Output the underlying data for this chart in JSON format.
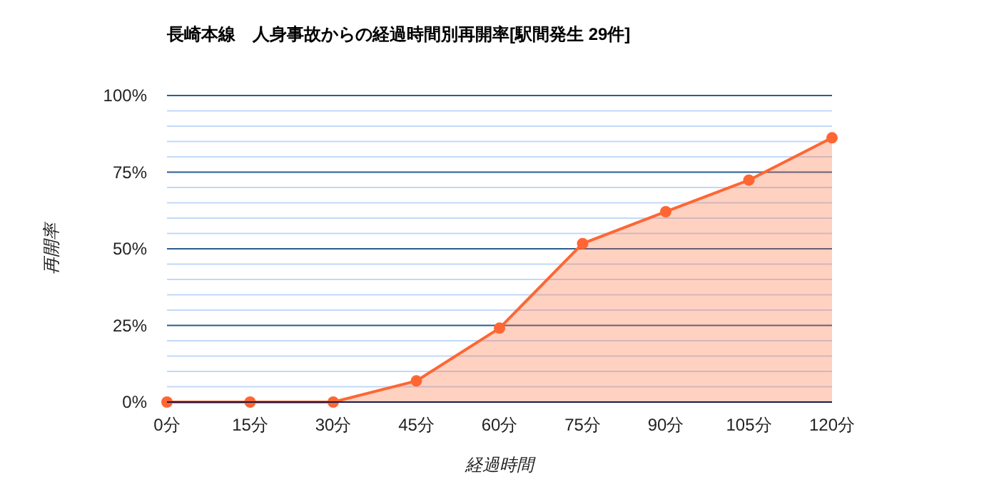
{
  "chart_data": {
    "type": "area",
    "title": "長崎本線　人身事故からの経過時間別再開率[駅間発生 29件]",
    "xlabel": "経過時間",
    "ylabel": "再開率",
    "categories": [
      "0分",
      "15分",
      "30分",
      "45分",
      "60分",
      "75分",
      "90分",
      "105分",
      "120分"
    ],
    "series": [
      {
        "color": "#ff6633",
        "values": [
          0,
          0,
          0,
          6.9,
          24.1,
          51.7,
          62.1,
          72.4,
          86.2
        ]
      }
    ],
    "ylim": [
      0,
      100
    ],
    "yticks": [
      {
        "value": 0,
        "label": "0%"
      },
      {
        "value": 5,
        "label": null
      },
      {
        "value": 10,
        "label": null
      },
      {
        "value": 15,
        "label": null
      },
      {
        "value": 20,
        "label": null
      },
      {
        "value": 25,
        "label": "25%"
      },
      {
        "value": 30,
        "label": null
      },
      {
        "value": 35,
        "label": null
      },
      {
        "value": 40,
        "label": null
      },
      {
        "value": 45,
        "label": null
      },
      {
        "value": 50,
        "label": "50%"
      },
      {
        "value": 55,
        "label": null
      },
      {
        "value": 60,
        "label": null
      },
      {
        "value": 65,
        "label": null
      },
      {
        "value": 70,
        "label": null
      },
      {
        "value": 75,
        "label": "75%"
      },
      {
        "value": 80,
        "label": null
      },
      {
        "value": 85,
        "label": null
      },
      {
        "value": 90,
        "label": null
      },
      {
        "value": 95,
        "label": null
      },
      {
        "value": 100,
        "label": "100%"
      }
    ],
    "grid": "y",
    "marker": "circle"
  }
}
